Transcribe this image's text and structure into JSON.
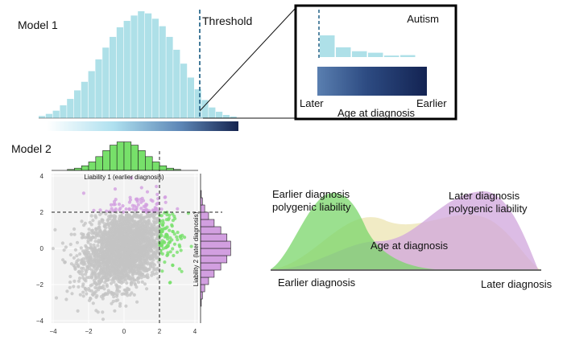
{
  "model1": {
    "label": "Model 1",
    "threshold_label": "Threshold",
    "histogram_heights": [
      0.02,
      0.04,
      0.07,
      0.12,
      0.18,
      0.26,
      0.34,
      0.44,
      0.55,
      0.66,
      0.76,
      0.85,
      0.91,
      0.96,
      1.0,
      0.98,
      0.93,
      0.86,
      0.76,
      0.64,
      0.51,
      0.38,
      0.27,
      0.17,
      0.1,
      0.06,
      0.03,
      0.015
    ],
    "highlight_color": "#aee0e8",
    "dark_color": "#1a2a5c"
  },
  "inset": {
    "title": "Autism",
    "bar_heights": [
      1.0,
      0.45,
      0.27,
      0.2,
      0.07,
      0.09
    ],
    "label_left": "Later",
    "label_right": "Earlier",
    "axis_label": "Age at diagnosis"
  },
  "model2": {
    "label": "Model 2",
    "top_hist_label": "Liability 1 (earlier diagnosis)",
    "right_hist_label": "Liability 2 (later diagnosis)",
    "x_ticks": [
      "−4",
      "−2",
      "0",
      "2",
      "4"
    ],
    "y_ticks": [
      "4",
      "2",
      "0",
      "−2",
      "−4"
    ],
    "threshold": 2,
    "green": "#77e06a",
    "purple": "#d29fe0",
    "gray": "#c4c4c4"
  },
  "density": {
    "early_label_line1": "Earlier diagnosis",
    "early_label_line2": "polygenic liability",
    "late_label_line1": "Later diagnosis",
    "late_label_line2": "polygenic liability",
    "center_label": "Age at diagnosis",
    "x_left": "Earlier diagnosis",
    "x_right": "Later diagnosis"
  }
}
